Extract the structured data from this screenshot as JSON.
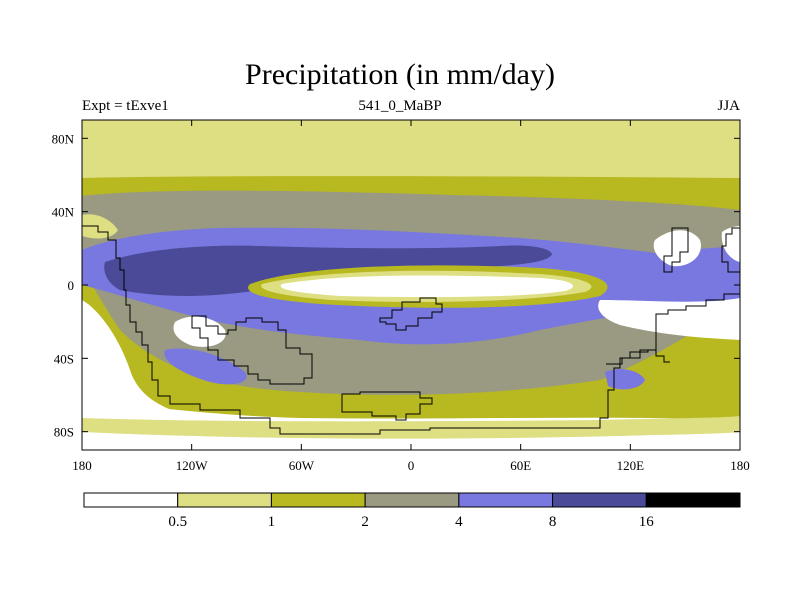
{
  "chart_data": {
    "type": "heatmap",
    "title": "Precipitation (in mm/day)",
    "subtitle_left": "Expt = tExve1",
    "subtitle_center": "541_0_MaBP",
    "subtitle_right": "JJA",
    "x_ticks": [
      "180",
      "120W",
      "60W",
      "0",
      "60E",
      "120E",
      "180"
    ],
    "x_values": [
      -180,
      -120,
      -60,
      0,
      60,
      120,
      180
    ],
    "y_ticks": [
      "80N",
      "40N",
      "0",
      "40S",
      "80S"
    ],
    "y_values": [
      80,
      40,
      0,
      -40,
      -80
    ],
    "xlim": [
      -180,
      180
    ],
    "ylim": [
      -90,
      90
    ],
    "colorbar_levels": [
      "0.5",
      "1",
      "2",
      "4",
      "8",
      "16"
    ],
    "colorbar_colors": [
      "#ffffff",
      "#dede82",
      "#b8b820",
      "#9a9a82",
      "#7878e0",
      "#4a4a98",
      "#000000"
    ]
  }
}
